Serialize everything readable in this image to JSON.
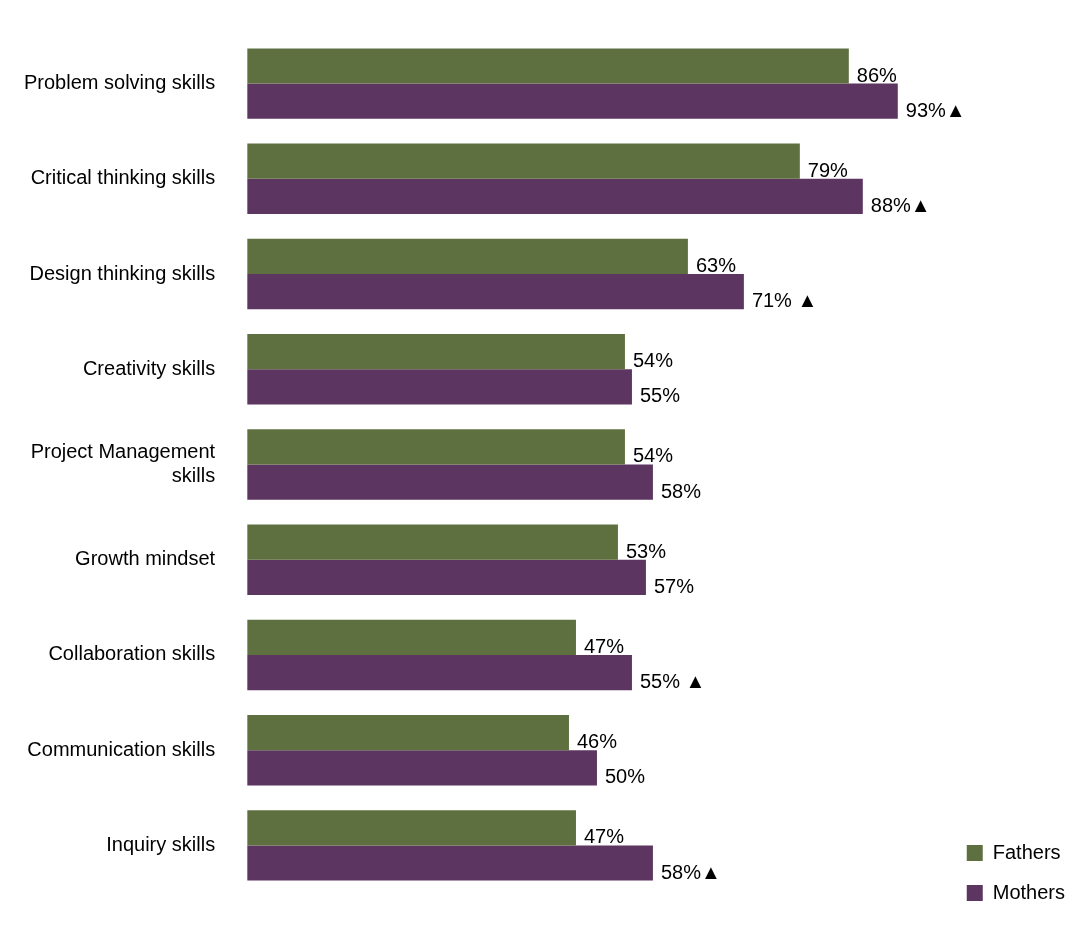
{
  "chart_data": {
    "type": "bar",
    "orientation": "horizontal",
    "categories": [
      "Problem solving skills",
      "Critical thinking skills",
      "Design thinking skills",
      "Creativity skills",
      "Project Management skills",
      "Growth mindset",
      "Collaboration skills",
      "Communication skills",
      "Inquiry skills"
    ],
    "series": [
      {
        "name": "Fathers",
        "color": "#5f7040",
        "values": [
          86,
          79,
          63,
          54,
          54,
          53,
          47,
          46,
          47
        ],
        "value_labels": [
          "86%",
          "79%",
          "63%",
          "54%",
          "54%",
          "53%",
          "47%",
          "46%",
          "47%"
        ]
      },
      {
        "name": "Mothers",
        "color": "#5c3560",
        "values": [
          93,
          88,
          71,
          55,
          58,
          57,
          55,
          50,
          58
        ],
        "value_labels": [
          "93%▲",
          "88%▲",
          "71% ▲",
          "55%",
          "58%",
          "57%",
          "55% ▲",
          "50%",
          "58%▲"
        ]
      }
    ],
    "legend": "bottom right"
  }
}
